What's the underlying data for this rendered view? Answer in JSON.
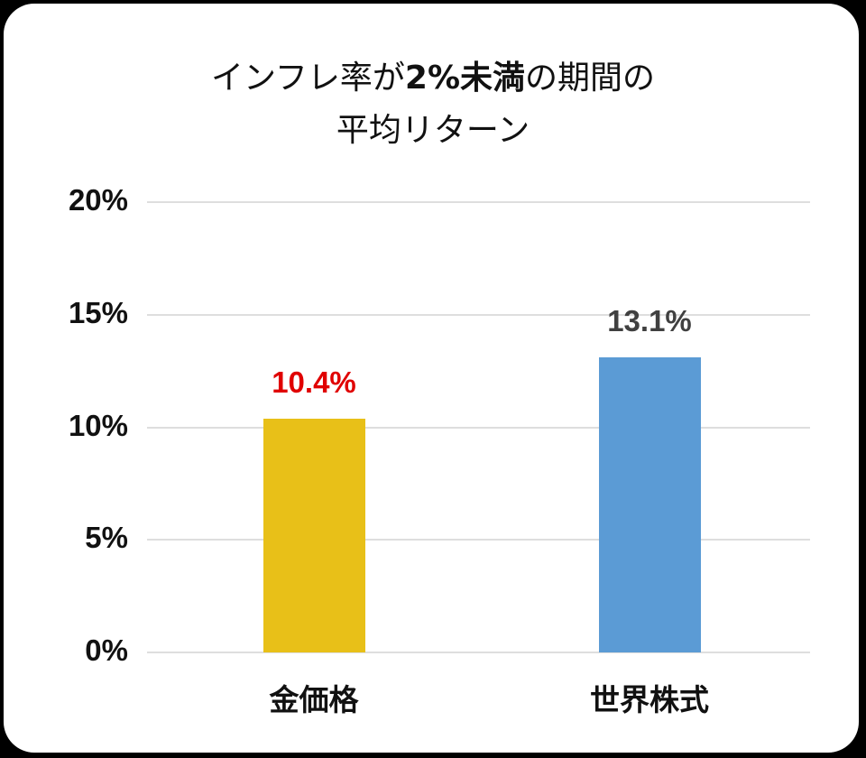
{
  "title": {
    "line1_pre": "インフレ率が",
    "line1_bold": "2%未満",
    "line1_post": "の期間の",
    "line2": "平均リターン"
  },
  "colors": {
    "background": "#000000",
    "card": "#ffffff",
    "gridline": "#dedede",
    "gold_bar": "#e8c018",
    "stock_bar": "#5b9bd5",
    "gold_label": "#e00000",
    "stock_label": "#404040"
  },
  "axis": {
    "ticks": [
      "0%",
      "5%",
      "10%",
      "15%",
      "20%"
    ]
  },
  "bars": [
    {
      "category": "金価格",
      "value_label": "10.4%"
    },
    {
      "category": "世界株式",
      "value_label": "13.1%"
    }
  ],
  "chart_data": {
    "type": "bar",
    "title": "インフレ率が2%未満の期間の平均リターン",
    "categories": [
      "金価格",
      "世界株式"
    ],
    "values": [
      10.4,
      13.1
    ],
    "unit": "%",
    "xlabel": "",
    "ylabel": "",
    "ylim": [
      0,
      20
    ],
    "yticks": [
      0,
      5,
      10,
      15,
      20
    ],
    "grid": true,
    "legend": "none",
    "bar_colors": [
      "#e8c018",
      "#5b9bd5"
    ],
    "data_label_colors": [
      "#e00000",
      "#404040"
    ]
  }
}
